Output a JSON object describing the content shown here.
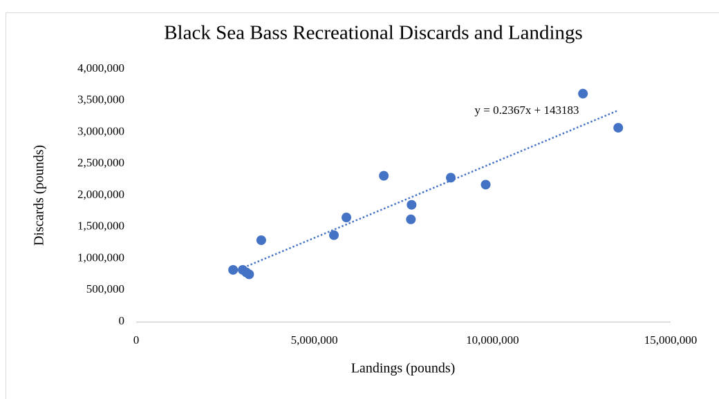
{
  "chart_data": {
    "type": "scatter",
    "title": "Black Sea Bass Recreational Discards and Landings",
    "x_label": "Landings (pounds)",
    "y_label": "Discards (pounds)",
    "series": [
      {
        "name": "Discards",
        "color": "#4472c4",
        "x": [
          2720000,
          2990000,
          3090000,
          3170000,
          3510000,
          5550000,
          5900000,
          6950000,
          7730000,
          7710000,
          8830000,
          9810000,
          12540000,
          13530000
        ],
        "values": [
          820000,
          820000,
          780000,
          750000,
          1290000,
          1370000,
          1650000,
          2310000,
          1850000,
          1620000,
          2280000,
          2170000,
          3610000,
          3070000
        ]
      }
    ],
    "trendline": {
      "slope": 0.2367,
      "intercept": 143183,
      "label": "y = 0.2367x + 143183",
      "color": "#4472c4"
    },
    "xlim": [
      0,
      15000000
    ],
    "xticks": [
      0,
      {
        "value": 5000000,
        "label": "5,000,000"
      },
      {
        "value": 10000000,
        "label": "10,000,000"
      },
      {
        "value": 15000000,
        "label": "15,000,000"
      }
    ],
    "ylim": [
      0,
      4000000
    ],
    "yticks": [
      0,
      {
        "value": 500000,
        "label": "500,000"
      },
      {
        "value": 1000000,
        "label": "1,000,000"
      },
      {
        "value": 1500000,
        "label": "1,500,000"
      },
      {
        "value": 2000000,
        "label": "2,000,000"
      },
      {
        "value": 2500000,
        "label": "2,500,000"
      },
      {
        "value": 3000000,
        "label": "3,000,000"
      },
      {
        "value": 3500000,
        "label": "3,500,000"
      },
      {
        "value": 4000000,
        "label": "4,000,000"
      }
    ],
    "grid": false
  }
}
